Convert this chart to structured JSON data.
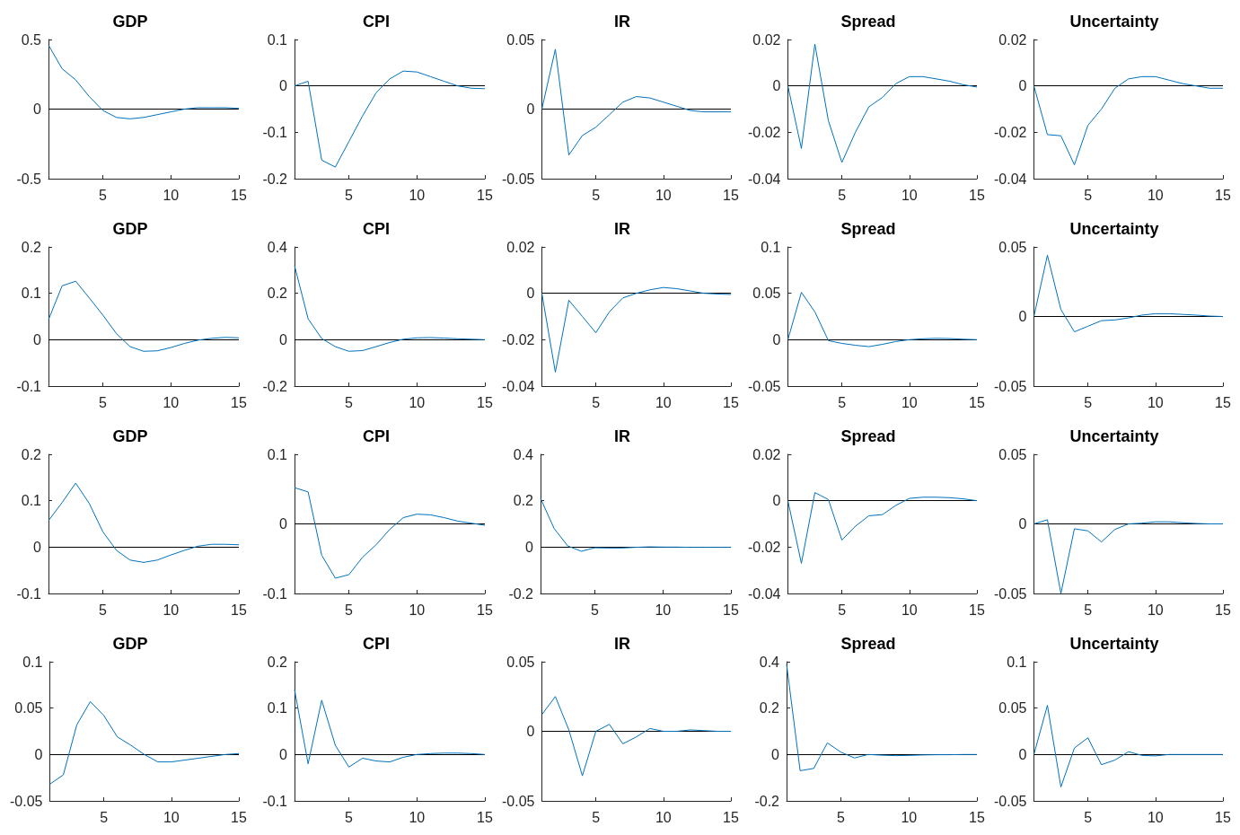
{
  "chart_data": [
    {
      "type": "line",
      "title": "GDP",
      "x": [
        1,
        2,
        3,
        4,
        5,
        6,
        7,
        8,
        9,
        10,
        11,
        12,
        13,
        14,
        15
      ],
      "color": "#0072bd",
      "values": [
        0.46,
        0.29,
        0.21,
        0.09,
        -0.01,
        -0.06,
        -0.07,
        -0.06,
        -0.04,
        -0.02,
        0,
        0.01,
        0.01,
        0.01,
        0.005
      ],
      "xlim": [
        1,
        15
      ],
      "xticks": [
        5,
        10,
        15
      ],
      "ylim": [
        -0.5,
        0.5
      ],
      "yticks": [
        -0.5,
        0,
        0.5
      ],
      "ref_lines": [
        {
          "axis": "y",
          "value": 0,
          "color": "#000000"
        }
      ]
    },
    {
      "type": "line",
      "title": "CPI",
      "x": [
        1,
        2,
        3,
        4,
        5,
        6,
        7,
        8,
        9,
        10,
        11,
        12,
        13,
        14,
        15
      ],
      "color": "#0072bd",
      "values": [
        0,
        0.01,
        -0.16,
        -0.175,
        -0.12,
        -0.065,
        -0.015,
        0.015,
        0.032,
        0.03,
        0.02,
        0.01,
        0,
        -0.005,
        -0.006
      ],
      "xlim": [
        1,
        15
      ],
      "xticks": [
        5,
        10,
        15
      ],
      "ylim": [
        -0.2,
        0.1
      ],
      "yticks": [
        -0.2,
        -0.1,
        0,
        0.1
      ],
      "ref_lines": [
        {
          "axis": "y",
          "value": 0,
          "color": "#000000"
        }
      ]
    },
    {
      "type": "line",
      "title": "IR",
      "x": [
        1,
        2,
        3,
        4,
        5,
        6,
        7,
        8,
        9,
        10,
        11,
        12,
        13,
        14,
        15
      ],
      "color": "#0072bd",
      "values": [
        0,
        0.043,
        -0.033,
        -0.019,
        -0.013,
        -0.004,
        0.005,
        0.009,
        0.008,
        0.005,
        0.002,
        -0.001,
        -0.002,
        -0.002,
        -0.002
      ],
      "xlim": [
        1,
        15
      ],
      "xticks": [
        5,
        10,
        15
      ],
      "ylim": [
        -0.05,
        0.05
      ],
      "yticks": [
        -0.05,
        0,
        0.05
      ],
      "ref_lines": [
        {
          "axis": "y",
          "value": 0,
          "color": "#000000"
        }
      ]
    },
    {
      "type": "line",
      "title": "Spread",
      "x": [
        1,
        2,
        3,
        4,
        5,
        6,
        7,
        8,
        9,
        10,
        11,
        12,
        13,
        14,
        15
      ],
      "color": "#0072bd",
      "values": [
        0,
        -0.027,
        0.018,
        -0.015,
        -0.033,
        -0.02,
        -0.009,
        -0.005,
        0.001,
        0.004,
        0.004,
        0.003,
        0.002,
        0.0005,
        -0.0005
      ],
      "xlim": [
        1,
        15
      ],
      "xticks": [
        5,
        10,
        15
      ],
      "ylim": [
        -0.04,
        0.02
      ],
      "yticks": [
        -0.04,
        -0.02,
        0,
        0.02
      ],
      "ref_lines": [
        {
          "axis": "y",
          "value": 0,
          "color": "#000000"
        }
      ]
    },
    {
      "type": "line",
      "title": "Uncertainty",
      "x": [
        1,
        2,
        3,
        4,
        5,
        6,
        7,
        8,
        9,
        10,
        11,
        12,
        13,
        14,
        15
      ],
      "color": "#0072bd",
      "values": [
        0,
        -0.021,
        -0.0215,
        -0.034,
        -0.017,
        -0.01,
        -0.001,
        0.003,
        0.004,
        0.004,
        0.0025,
        0.001,
        0,
        -0.001,
        -0.001
      ],
      "xlim": [
        1,
        15
      ],
      "xticks": [
        5,
        10,
        15
      ],
      "ylim": [
        -0.04,
        0.02
      ],
      "yticks": [
        -0.04,
        -0.02,
        0,
        0.02
      ],
      "ref_lines": [
        {
          "axis": "y",
          "value": 0,
          "color": "#000000"
        }
      ]
    },
    {
      "type": "line",
      "title": "GDP",
      "x": [
        1,
        2,
        3,
        4,
        5,
        6,
        7,
        8,
        9,
        10,
        11,
        12,
        13,
        14,
        15
      ],
      "color": "#0072bd",
      "values": [
        0.043,
        0.116,
        0.126,
        0.09,
        0.053,
        0.013,
        -0.015,
        -0.025,
        -0.024,
        -0.017,
        -0.008,
        -0.001,
        0.003,
        0.005,
        0.004
      ],
      "xlim": [
        1,
        15
      ],
      "xticks": [
        5,
        10,
        15
      ],
      "ylim": [
        -0.1,
        0.2
      ],
      "yticks": [
        -0.1,
        0,
        0.1,
        0.2
      ],
      "ref_lines": [
        {
          "axis": "y",
          "value": 0,
          "color": "#000000"
        }
      ]
    },
    {
      "type": "line",
      "title": "CPI",
      "x": [
        1,
        2,
        3,
        4,
        5,
        6,
        7,
        8,
        9,
        10,
        11,
        12,
        13,
        14,
        15
      ],
      "color": "#0072bd",
      "values": [
        0.32,
        0.09,
        0.005,
        -0.03,
        -0.05,
        -0.047,
        -0.03,
        -0.012,
        0.002,
        0.008,
        0.009,
        0.007,
        0.004,
        0.002,
        0
      ],
      "xlim": [
        1,
        15
      ],
      "xticks": [
        5,
        10,
        15
      ],
      "ylim": [
        -0.2,
        0.4
      ],
      "yticks": [
        -0.2,
        0,
        0.2,
        0.4
      ],
      "ref_lines": [
        {
          "axis": "y",
          "value": 0,
          "color": "#000000"
        }
      ]
    },
    {
      "type": "line",
      "title": "IR",
      "x": [
        1,
        2,
        3,
        4,
        5,
        6,
        7,
        8,
        9,
        10,
        11,
        12,
        13,
        14,
        15
      ],
      "color": "#0072bd",
      "values": [
        0,
        -0.034,
        -0.003,
        -0.01,
        -0.017,
        -0.008,
        -0.002,
        0,
        0.0015,
        0.0025,
        0.002,
        0.001,
        0,
        -0.0003,
        -0.0005
      ],
      "xlim": [
        1,
        15
      ],
      "xticks": [
        5,
        10,
        15
      ],
      "ylim": [
        -0.04,
        0.02
      ],
      "yticks": [
        -0.04,
        -0.02,
        0,
        0.02
      ],
      "ref_lines": [
        {
          "axis": "y",
          "value": 0,
          "color": "#000000"
        }
      ]
    },
    {
      "type": "line",
      "title": "Spread",
      "x": [
        1,
        2,
        3,
        4,
        5,
        6,
        7,
        8,
        9,
        10,
        11,
        12,
        13,
        14,
        15
      ],
      "color": "#0072bd",
      "values": [
        0,
        0.051,
        0.03,
        -0.001,
        -0.004,
        -0.006,
        -0.0075,
        -0.005,
        -0.002,
        0,
        0.001,
        0.0015,
        0.0012,
        0.0005,
        0
      ],
      "xlim": [
        1,
        15
      ],
      "xticks": [
        5,
        10,
        15
      ],
      "ylim": [
        -0.05,
        0.1
      ],
      "yticks": [
        -0.05,
        0,
        0.05,
        0.1
      ],
      "ref_lines": [
        {
          "axis": "y",
          "value": 0,
          "color": "#000000"
        }
      ]
    },
    {
      "type": "line",
      "title": "Uncertainty",
      "x": [
        1,
        2,
        3,
        4,
        5,
        6,
        7,
        8,
        9,
        10,
        11,
        12,
        13,
        14,
        15
      ],
      "color": "#0072bd",
      "values": [
        0,
        0.044,
        0.005,
        -0.011,
        -0.007,
        -0.003,
        -0.0025,
        -0.001,
        0.001,
        0.002,
        0.002,
        0.0015,
        0.001,
        0.0003,
        0
      ],
      "xlim": [
        1,
        15
      ],
      "xticks": [
        5,
        10,
        15
      ],
      "ylim": [
        -0.05,
        0.05
      ],
      "yticks": [
        -0.05,
        0,
        0.05
      ],
      "ref_lines": [
        {
          "axis": "y",
          "value": 0,
          "color": "#000000"
        }
      ]
    },
    {
      "type": "line",
      "title": "GDP",
      "x": [
        1,
        2,
        3,
        4,
        5,
        6,
        7,
        8,
        9,
        10,
        11,
        12,
        13,
        14,
        15
      ],
      "color": "#0072bd",
      "values": [
        0.057,
        0.096,
        0.138,
        0.094,
        0.033,
        -0.007,
        -0.028,
        -0.033,
        -0.028,
        -0.017,
        -0.007,
        0.002,
        0.006,
        0.006,
        0.005
      ],
      "xlim": [
        1,
        15
      ],
      "xticks": [
        5,
        10,
        15
      ],
      "ylim": [
        -0.1,
        0.2
      ],
      "yticks": [
        -0.1,
        0,
        0.1,
        0.2
      ],
      "ref_lines": [
        {
          "axis": "y",
          "value": 0,
          "color": "#000000"
        }
      ]
    },
    {
      "type": "line",
      "title": "CPI",
      "x": [
        1,
        2,
        3,
        4,
        5,
        6,
        7,
        8,
        9,
        10,
        11,
        12,
        13,
        14,
        15
      ],
      "color": "#0072bd",
      "values": [
        0.052,
        0.046,
        -0.045,
        -0.078,
        -0.073,
        -0.048,
        -0.03,
        -0.008,
        0.009,
        0.014,
        0.013,
        0.009,
        0.004,
        0.001,
        -0.002
      ],
      "xlim": [
        1,
        15
      ],
      "xticks": [
        5,
        10,
        15
      ],
      "ylim": [
        -0.1,
        0.1
      ],
      "yticks": [
        -0.1,
        0,
        0.1
      ],
      "ref_lines": [
        {
          "axis": "y",
          "value": 0,
          "color": "#000000"
        }
      ]
    },
    {
      "type": "line",
      "title": "IR",
      "x": [
        1,
        2,
        3,
        4,
        5,
        6,
        7,
        8,
        9,
        10,
        11,
        12,
        13,
        14,
        15
      ],
      "color": "#0072bd",
      "values": [
        0.21,
        0.08,
        0.005,
        -0.018,
        -0.003,
        -0.004,
        -0.004,
        -0.001,
        0.001,
        0,
        0,
        -0.001,
        -0.001,
        -0.001,
        -0.001
      ],
      "xlim": [
        1,
        15
      ],
      "xticks": [
        5,
        10,
        15
      ],
      "ylim": [
        -0.2,
        0.4
      ],
      "yticks": [
        -0.2,
        0,
        0.2,
        0.4
      ],
      "ref_lines": [
        {
          "axis": "y",
          "value": 0,
          "color": "#000000"
        }
      ]
    },
    {
      "type": "line",
      "title": "Spread",
      "x": [
        1,
        2,
        3,
        4,
        5,
        6,
        7,
        8,
        9,
        10,
        11,
        12,
        13,
        14,
        15
      ],
      "color": "#0072bd",
      "values": [
        0,
        -0.027,
        0.0035,
        0.0005,
        -0.017,
        -0.011,
        -0.0065,
        -0.006,
        -0.002,
        0.001,
        0.0015,
        0.0015,
        0.0013,
        0.0008,
        0
      ],
      "xlim": [
        1,
        15
      ],
      "xticks": [
        5,
        10,
        15
      ],
      "ylim": [
        -0.04,
        0.02
      ],
      "yticks": [
        -0.04,
        -0.02,
        0,
        0.02
      ],
      "ref_lines": [
        {
          "axis": "y",
          "value": 0,
          "color": "#000000"
        }
      ]
    },
    {
      "type": "line",
      "title": "Uncertainty",
      "x": [
        1,
        2,
        3,
        4,
        5,
        6,
        7,
        8,
        9,
        10,
        11,
        12,
        13,
        14,
        15
      ],
      "color": "#0072bd",
      "values": [
        0,
        0.003,
        -0.05,
        -0.0035,
        -0.005,
        -0.013,
        -0.004,
        0,
        0.0005,
        0.0015,
        0.0015,
        0.0008,
        0.0003,
        0,
        0
      ],
      "xlim": [
        1,
        15
      ],
      "xticks": [
        5,
        10,
        15
      ],
      "ylim": [
        -0.05,
        0.05
      ],
      "yticks": [
        -0.05,
        0,
        0.05
      ],
      "ref_lines": [
        {
          "axis": "y",
          "value": 0,
          "color": "#000000"
        }
      ]
    },
    {
      "type": "line",
      "title": "GDP",
      "x": [
        1,
        2,
        3,
        4,
        5,
        6,
        7,
        8,
        9,
        10,
        11,
        12,
        13,
        14,
        15
      ],
      "color": "#0072bd",
      "values": [
        -0.032,
        -0.022,
        0.032,
        0.057,
        0.042,
        0.019,
        0.01,
        0,
        -0.008,
        -0.008,
        -0.006,
        -0.004,
        -0.002,
        0,
        0.001
      ],
      "xlim": [
        1,
        15
      ],
      "xticks": [
        5,
        10,
        15
      ],
      "ylim": [
        -0.05,
        0.1
      ],
      "yticks": [
        -0.05,
        0,
        0.05,
        0.1
      ],
      "ref_lines": [
        {
          "axis": "y",
          "value": 0,
          "color": "#000000"
        }
      ]
    },
    {
      "type": "line",
      "title": "CPI",
      "x": [
        1,
        2,
        3,
        4,
        5,
        6,
        7,
        8,
        9,
        10,
        11,
        12,
        13,
        14,
        15
      ],
      "color": "#0072bd",
      "values": [
        0.14,
        -0.02,
        0.117,
        0.02,
        -0.027,
        -0.008,
        -0.014,
        -0.016,
        -0.006,
        0,
        0.002,
        0.003,
        0.003,
        0.002,
        0
      ],
      "xlim": [
        1,
        15
      ],
      "xticks": [
        5,
        10,
        15
      ],
      "ylim": [
        -0.1,
        0.2
      ],
      "yticks": [
        -0.1,
        0,
        0.1,
        0.2
      ],
      "ref_lines": [
        {
          "axis": "y",
          "value": 0,
          "color": "#000000"
        }
      ]
    },
    {
      "type": "line",
      "title": "IR",
      "x": [
        1,
        2,
        3,
        4,
        5,
        6,
        7,
        8,
        9,
        10,
        11,
        12,
        13,
        14,
        15
      ],
      "color": "#0072bd",
      "values": [
        0.012,
        0.025,
        0.001,
        -0.032,
        0,
        0.005,
        -0.009,
        -0.004,
        0.002,
        0,
        0,
        0.001,
        0.0005,
        0,
        0
      ],
      "xlim": [
        1,
        15
      ],
      "xticks": [
        5,
        10,
        15
      ],
      "ylim": [
        -0.05,
        0.05
      ],
      "yticks": [
        -0.05,
        0,
        0.05
      ],
      "ref_lines": [
        {
          "axis": "y",
          "value": 0,
          "color": "#000000"
        }
      ]
    },
    {
      "type": "line",
      "title": "Spread",
      "x": [
        1,
        2,
        3,
        4,
        5,
        6,
        7,
        8,
        9,
        10,
        11,
        12,
        13,
        14,
        15
      ],
      "color": "#0072bd",
      "values": [
        0.39,
        -0.07,
        -0.06,
        0.05,
        0.01,
        -0.015,
        0,
        -0.003,
        -0.005,
        -0.004,
        -0.002,
        -0.001,
        -0.001,
        0,
        0
      ],
      "xlim": [
        1,
        15
      ],
      "xticks": [
        5,
        10,
        15
      ],
      "ylim": [
        -0.2,
        0.4
      ],
      "yticks": [
        -0.2,
        0,
        0.2,
        0.4
      ],
      "ref_lines": [
        {
          "axis": "y",
          "value": 0,
          "color": "#000000"
        }
      ]
    },
    {
      "type": "line",
      "title": "Uncertainty",
      "x": [
        1,
        2,
        3,
        4,
        5,
        6,
        7,
        8,
        9,
        10,
        11,
        12,
        13,
        14,
        15
      ],
      "color": "#0072bd",
      "values": [
        0,
        0.053,
        -0.035,
        0.007,
        0.018,
        -0.011,
        -0.006,
        0.003,
        -0.001,
        -0.0015,
        0,
        0,
        0,
        0,
        0
      ],
      "xlim": [
        1,
        15
      ],
      "xticks": [
        5,
        10,
        15
      ],
      "ylim": [
        -0.05,
        0.1
      ],
      "yticks": [
        -0.05,
        0,
        0.05,
        0.1
      ],
      "ref_lines": [
        {
          "axis": "y",
          "value": 0,
          "color": "#000000"
        }
      ]
    }
  ]
}
